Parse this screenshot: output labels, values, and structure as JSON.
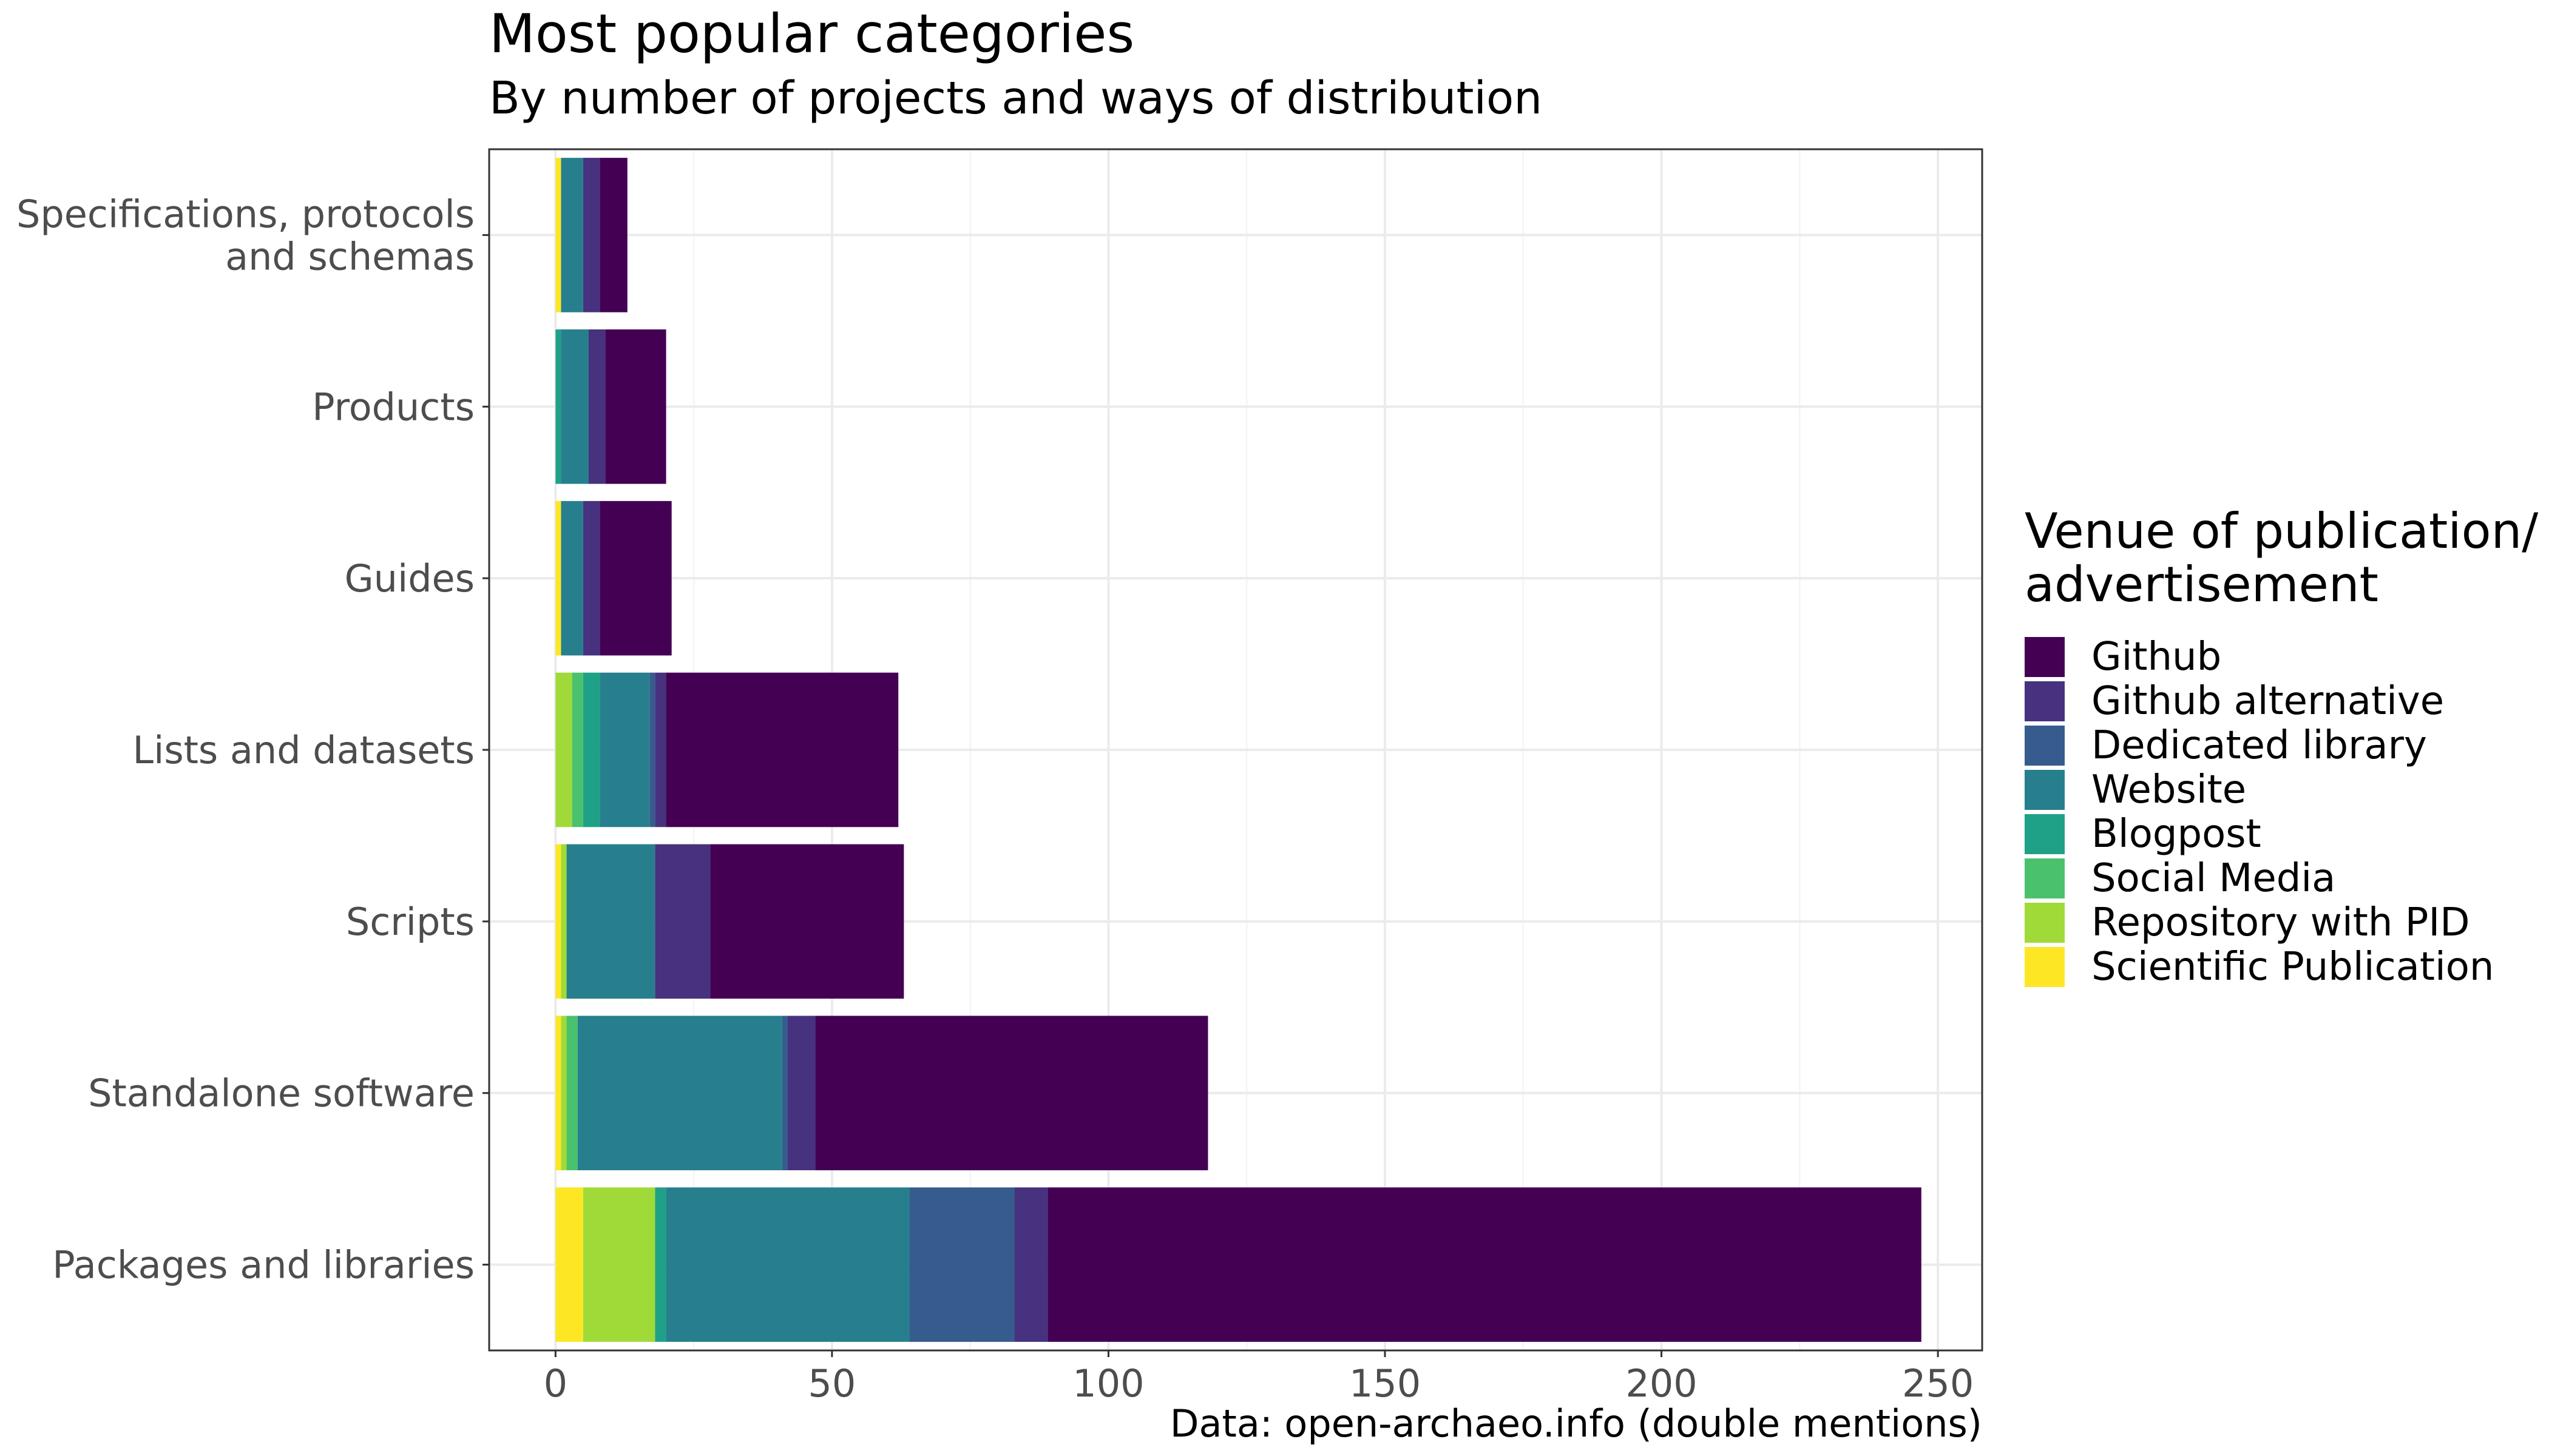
{
  "chart_data": {
    "type": "bar",
    "orientation": "horizontal",
    "stacked": true,
    "title": "Most popular categories",
    "subtitle": "By number of projects and ways of distribution",
    "caption": "Data: open-archaeo.info (double mentions)",
    "xlabel": "",
    "ylabel": "",
    "xlim": [
      -12,
      258
    ],
    "xticks": [
      0,
      50,
      100,
      150,
      200,
      250
    ],
    "grid": true,
    "legend_title": "Venue of publication/ advertisement",
    "legend_position": "right",
    "categories": [
      "Specifications, protocols and schemas",
      "Products",
      "Guides",
      "Lists and datasets",
      "Scripts",
      "Standalone software",
      "Packages and libraries"
    ],
    "series": [
      {
        "name": "Scientific Publication",
        "color": "#FDE725",
        "values": [
          1,
          0,
          1,
          0,
          1,
          1,
          5
        ]
      },
      {
        "name": "Repository with PID",
        "color": "#A0DA39",
        "values": [
          0,
          0,
          0,
          3,
          1,
          1,
          13
        ]
      },
      {
        "name": "Social Media",
        "color": "#4AC16D",
        "values": [
          0,
          0,
          0,
          2,
          0,
          2,
          0
        ]
      },
      {
        "name": "Blogpost",
        "color": "#1FA187",
        "values": [
          0,
          1,
          0,
          3,
          0,
          0,
          2
        ]
      },
      {
        "name": "Website",
        "color": "#277F8E",
        "values": [
          4,
          5,
          4,
          9,
          16,
          37,
          44
        ]
      },
      {
        "name": "Dedicated library",
        "color": "#365C8D",
        "values": [
          0,
          0,
          0,
          1,
          0,
          1,
          19
        ]
      },
      {
        "name": "Github alternative",
        "color": "#46327E",
        "values": [
          3,
          3,
          3,
          2,
          10,
          5,
          6
        ]
      },
      {
        "name": "Github",
        "color": "#440154",
        "values": [
          5,
          11,
          13,
          42,
          35,
          71,
          158
        ]
      }
    ],
    "legend_order": [
      "Github",
      "Github alternative",
      "Dedicated library",
      "Website",
      "Blogpost",
      "Social Media",
      "Repository with PID",
      "Scientific Publication"
    ]
  }
}
